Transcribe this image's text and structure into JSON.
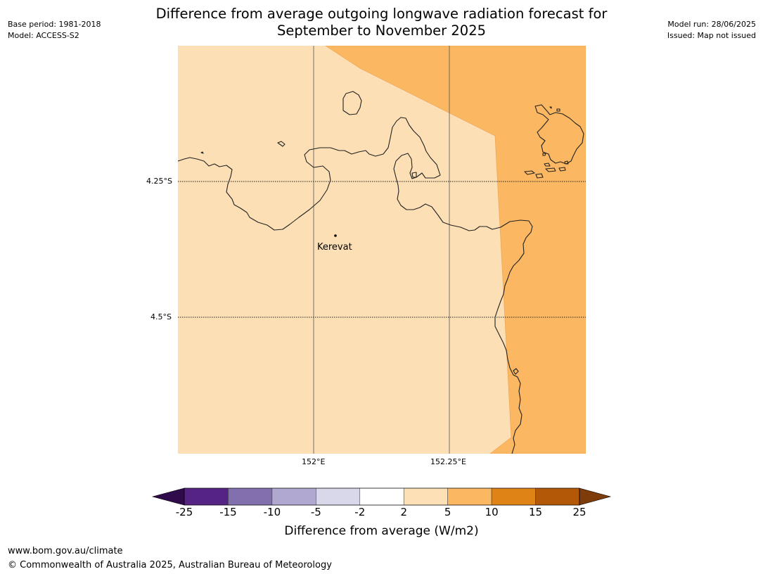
{
  "title": {
    "line1": "Difference from average outgoing longwave radiation forecast for",
    "line2": "September to November 2025"
  },
  "meta_left": {
    "base_period": "Base period: 1981-2018",
    "model": "Model: ACCESS-S2"
  },
  "meta_right": {
    "model_run": "Model run: 28/06/2025",
    "issued": "Issued: Map not issued"
  },
  "map": {
    "lat_labels": [
      "4.25°S",
      "4.5°S"
    ],
    "lon_labels": [
      "152°E",
      "152.25°E"
    ],
    "place": "Kerevat",
    "colors": {
      "light": "#fcdfb4",
      "medium": "#fbb761",
      "coast": "#222222",
      "grid": "#555555"
    }
  },
  "colorbar": {
    "label": "Difference from average (W/m2)",
    "ticks": [
      "-25",
      "-15",
      "-10",
      "-5",
      "-2",
      "2",
      "5",
      "10",
      "15",
      "25"
    ],
    "colors": [
      "#552384",
      "#8270ae",
      "#b0a8d1",
      "#d8d8ea",
      "#ffffff",
      "#fde0b6",
      "#fbb761",
      "#e08316",
      "#b25807"
    ],
    "extend_low_color": "#2f0b4c",
    "extend_high_color": "#7d3c0a"
  },
  "footer": {
    "url": "www.bom.gov.au/climate",
    "copyright": "© Commonwealth of Australia 2025, Australian Bureau of Meteorology"
  }
}
